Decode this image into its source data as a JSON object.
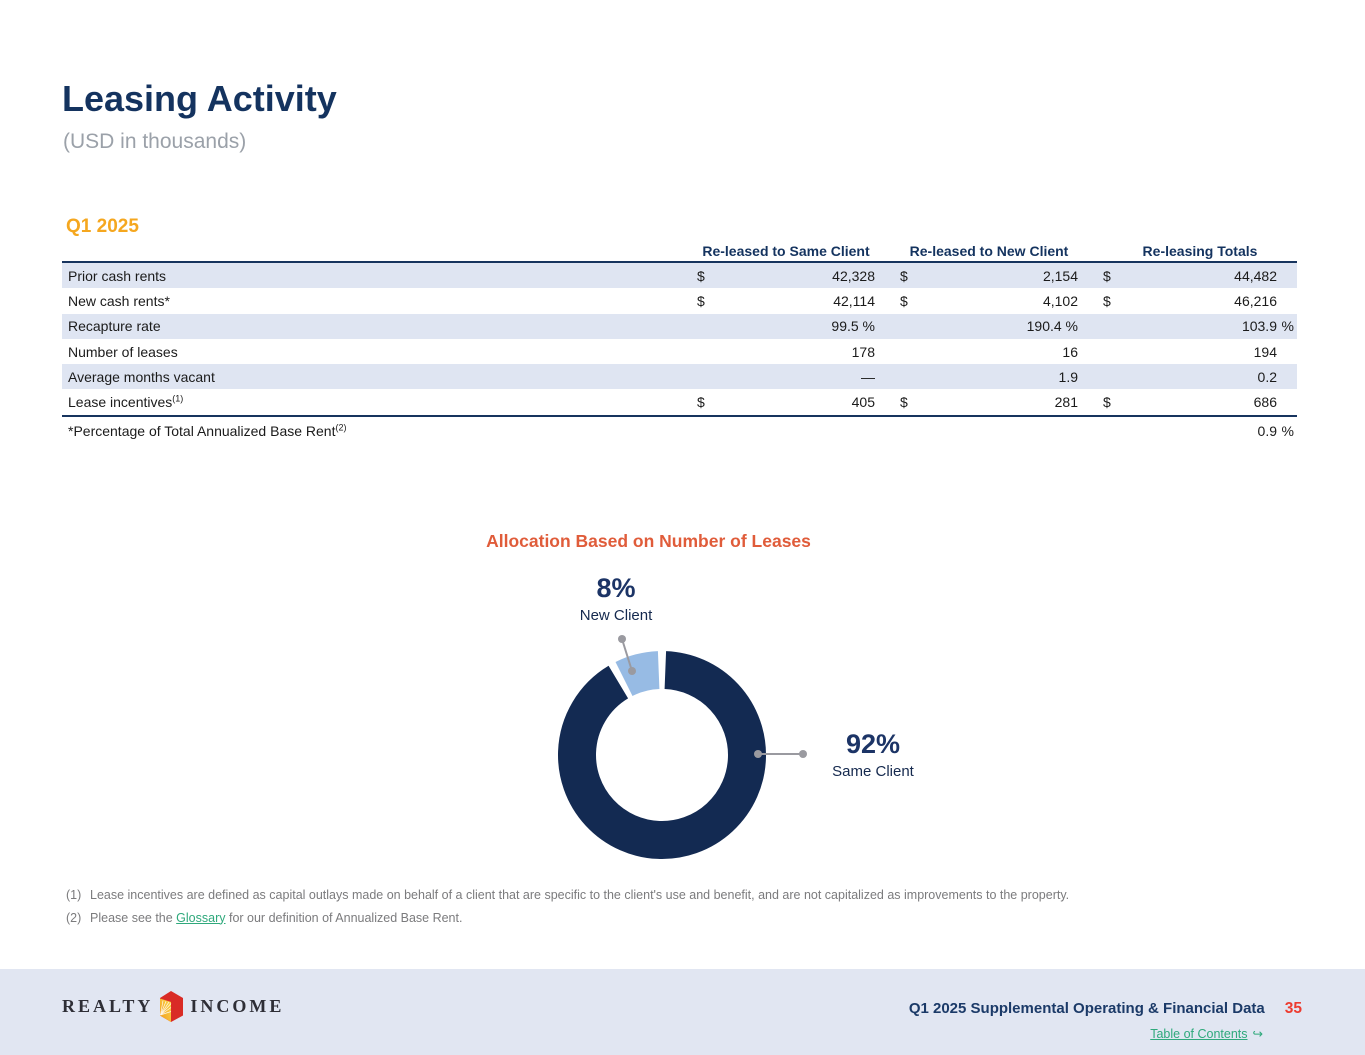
{
  "page": {
    "title": "Leasing Activity",
    "subtitle": "(USD in thousands)"
  },
  "section": {
    "label": "Q1 2025"
  },
  "table": {
    "columns": [
      "Re-leased to Same Client",
      "Re-leased to New Client",
      "Re-leasing Totals"
    ],
    "rows": [
      {
        "label": "Prior cash rents",
        "sup": "",
        "shaded": true,
        "cells": [
          {
            "pre": "$",
            "val": "42,328",
            "unit": ""
          },
          {
            "pre": "$",
            "val": "2,154",
            "unit": ""
          },
          {
            "pre": "$",
            "val": "44,482",
            "unit": ""
          }
        ]
      },
      {
        "label": "New cash rents*",
        "sup": "",
        "shaded": false,
        "cells": [
          {
            "pre": "$",
            "val": "42,114",
            "unit": ""
          },
          {
            "pre": "$",
            "val": "4,102",
            "unit": ""
          },
          {
            "pre": "$",
            "val": "46,216",
            "unit": ""
          }
        ]
      },
      {
        "label": "Recapture rate",
        "sup": "",
        "shaded": true,
        "cells": [
          {
            "pre": "",
            "val": "99.5 %",
            "unit": ""
          },
          {
            "pre": "",
            "val": "190.4 %",
            "unit": ""
          },
          {
            "pre": "",
            "val": "103.9",
            "unit": "%"
          }
        ]
      },
      {
        "label": "Number of leases",
        "sup": "",
        "shaded": false,
        "cells": [
          {
            "pre": "",
            "val": "178",
            "unit": ""
          },
          {
            "pre": "",
            "val": "16",
            "unit": ""
          },
          {
            "pre": "",
            "val": "194",
            "unit": ""
          }
        ]
      },
      {
        "label": "Average months vacant",
        "sup": "",
        "shaded": true,
        "cells": [
          {
            "pre": "",
            "val": "—",
            "unit": ""
          },
          {
            "pre": "",
            "val": "1.9",
            "unit": ""
          },
          {
            "pre": "",
            "val": "0.2",
            "unit": ""
          }
        ]
      },
      {
        "label": "Lease incentives",
        "sup": "(1)",
        "shaded": false,
        "cells": [
          {
            "pre": "$",
            "val": "405",
            "unit": ""
          },
          {
            "pre": "$",
            "val": "281",
            "unit": ""
          },
          {
            "pre": "$",
            "val": "686",
            "unit": ""
          }
        ]
      }
    ],
    "summary_row": {
      "label": "*Percentage of Total Annualized Base Rent",
      "sup": "(2)",
      "value": "0.9",
      "unit": "%"
    }
  },
  "chart": {
    "title": "Allocation Based on Number of Leases",
    "slices": [
      {
        "label": "Same Client",
        "pct": "92%"
      },
      {
        "label": "New Client",
        "pct": "8%"
      }
    ]
  },
  "chart_data": {
    "type": "pie",
    "title": "Allocation Based on Number of Leases",
    "labels": [
      "Same Client",
      "New Client"
    ],
    "values": [
      92,
      8
    ],
    "unit": "%",
    "colors": [
      "#132A52",
      "#97BBE4"
    ],
    "legend_position": "callout-labels"
  },
  "footnotes": [
    {
      "num": "(1)",
      "text": "Lease incentives are defined as capital outlays made on behalf of a client that are specific to the client's use and benefit, and are not capitalized as improvements to the property."
    },
    {
      "num": "(2)",
      "pre": "Please see the ",
      "link": "Glossary",
      "post": " for our definition of Annualized Base Rent."
    }
  ],
  "footer": {
    "logo_word1": "REALTY",
    "logo_word2": "INCOME",
    "doc_title": "Q1 2025 Supplemental Operating & Financial Data",
    "page_number": "35",
    "toc_label": "Table of Contents",
    "toc_arrow": "↪"
  },
  "colors": {
    "navy": "#14335F",
    "accent_orange": "#F5A71F",
    "chart_title_orange": "#E05C3A",
    "donut_navy": "#132A52",
    "donut_blue": "#97BBE4",
    "row_shade": "#DFE5F2",
    "link_green": "#2FA97C",
    "page_number_red": "#ED3B2F",
    "footer_bg": "#E1E6F2"
  }
}
